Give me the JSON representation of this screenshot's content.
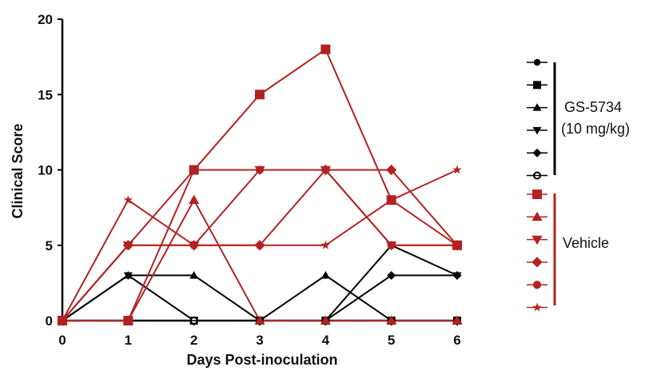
{
  "chart_data": {
    "type": "line",
    "title": "",
    "xlabel": "Days Post-inoculation",
    "ylabel": "Clinical Score",
    "x": [
      0,
      1,
      2,
      3,
      4,
      5,
      6
    ],
    "xlim": [
      0,
      6
    ],
    "ylim": [
      0,
      20
    ],
    "x_ticks": [
      "0",
      "1",
      "2",
      "3",
      "4",
      "5",
      "6"
    ],
    "y_ticks": [
      "0",
      "5",
      "10",
      "15",
      "20"
    ],
    "grid": false,
    "legend_placement": "right",
    "legend_groups": [
      {
        "label_line1": "GS-5734",
        "label_line2": "(10 mg/kg)",
        "color": "#000000"
      },
      {
        "label_line1": "Vehicle",
        "label_line2": "",
        "color": "#b22222"
      }
    ],
    "series": [
      {
        "group": 0,
        "marker": "circle",
        "color": "#000000",
        "values": [
          0,
          0,
          0,
          0,
          0,
          0,
          0
        ]
      },
      {
        "group": 0,
        "marker": "square",
        "color": "#000000",
        "values": [
          0,
          0,
          0,
          0,
          0,
          0,
          0
        ]
      },
      {
        "group": 0,
        "marker": "triangle-up",
        "color": "#000000",
        "values": [
          0,
          3,
          3,
          0,
          3,
          0,
          0
        ]
      },
      {
        "group": 0,
        "marker": "triangle-down",
        "color": "#000000",
        "values": [
          0,
          3,
          0,
          0,
          0,
          5,
          3
        ]
      },
      {
        "group": 0,
        "marker": "diamond",
        "color": "#000000",
        "values": [
          0,
          0,
          0,
          0,
          0,
          3,
          3
        ]
      },
      {
        "group": 0,
        "marker": "circle-open",
        "color": "#000000",
        "values": [
          0,
          0,
          0,
          0,
          0,
          0,
          0
        ]
      },
      {
        "group": 1,
        "marker": "square",
        "color": "#b22222",
        "values": [
          0,
          0,
          10,
          15,
          18,
          8,
          5
        ]
      },
      {
        "group": 1,
        "marker": "triangle-up",
        "color": "#b22222",
        "values": [
          0,
          0,
          8,
          0,
          0,
          0,
          0
        ]
      },
      {
        "group": 1,
        "marker": "triangle-down",
        "color": "#b22222",
        "values": [
          0,
          5,
          5,
          10,
          10,
          5,
          5
        ]
      },
      {
        "group": 1,
        "marker": "diamond",
        "color": "#b22222",
        "values": [
          0,
          5,
          5,
          5,
          10,
          10,
          5
        ]
      },
      {
        "group": 1,
        "marker": "circle",
        "color": "#b22222",
        "values": [
          0,
          5,
          10,
          10,
          10,
          5,
          5
        ]
      },
      {
        "group": 1,
        "marker": "star",
        "color": "#b22222",
        "values": [
          0,
          8,
          5,
          5,
          5,
          8,
          10
        ]
      }
    ]
  }
}
